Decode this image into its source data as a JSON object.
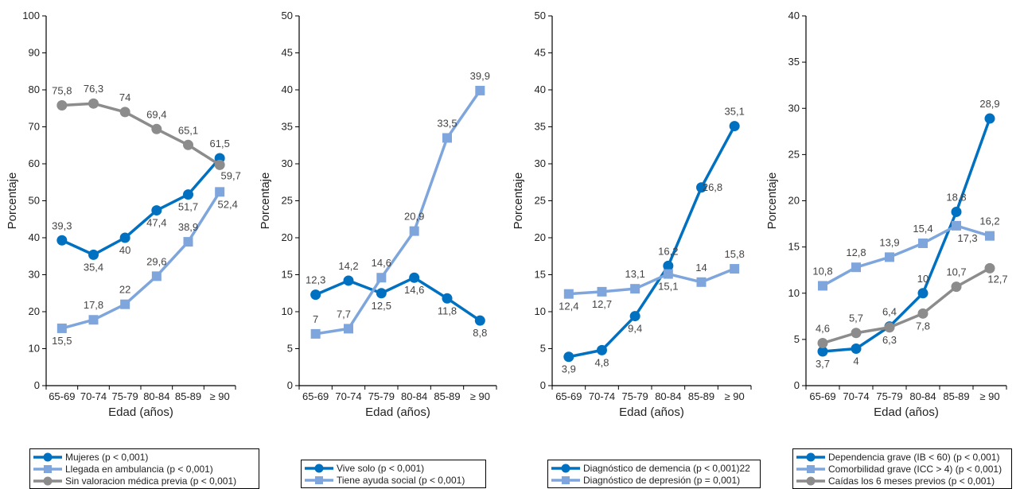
{
  "colors": {
    "dark_blue": "#0070c0",
    "light_blue": "#7ea6dc",
    "gray": "#8c8c8c"
  },
  "chart_data": [
    {
      "type": "line",
      "categories": [
        "65-69",
        "70-74",
        "75-79",
        "80-84",
        "85-89",
        "≥ 90"
      ],
      "xlabel": "Edad (años)",
      "ylabel": "Porcentaje",
      "ylim": [
        0,
        100
      ],
      "yticks": [
        0,
        10,
        20,
        30,
        40,
        50,
        60,
        70,
        80,
        90,
        100
      ],
      "grid": false,
      "legend_position": "bottom",
      "series": [
        {
          "name": "Mujeres (p < 0,001)",
          "color": "#0070c0",
          "marker": "circle",
          "values": [
            39.3,
            35.4,
            40,
            47.4,
            51.7,
            61.5
          ],
          "labels": [
            "39,3",
            "35,4",
            "40",
            "47,4",
            "51,7",
            "61,5"
          ]
        },
        {
          "name": "Llegada en ambulancia (p < 0,001)",
          "color": "#7ea6dc",
          "marker": "square",
          "values": [
            15.5,
            17.8,
            22,
            29.6,
            38.9,
            52.4
          ],
          "labels": [
            "15,5",
            "17,8",
            "22",
            "29,6",
            "38,9",
            "52,4"
          ]
        },
        {
          "name": "Sin valoracion médica previa (p < 0,001)",
          "color": "#8c8c8c",
          "marker": "circle",
          "values": [
            75.8,
            76.3,
            74,
            69.4,
            65.1,
            59.7
          ],
          "labels": [
            "75,8",
            "76,3",
            "74",
            "69,4",
            "65,1",
            "59,7"
          ]
        }
      ]
    },
    {
      "type": "line",
      "categories": [
        "65-69",
        "70-74",
        "75-79",
        "80-84",
        "85-89",
        "≥ 90"
      ],
      "xlabel": "Edad (años)",
      "ylabel": "Porcentaje",
      "ylim": [
        0,
        50
      ],
      "yticks": [
        0,
        5,
        10,
        15,
        20,
        25,
        30,
        35,
        40,
        45,
        50
      ],
      "grid": false,
      "legend_position": "bottom",
      "series": [
        {
          "name": "Vive solo (p < 0,001)",
          "color": "#0070c0",
          "marker": "circle",
          "values": [
            12.3,
            14.2,
            12.5,
            14.6,
            11.8,
            8.8
          ],
          "labels": [
            "12,3",
            "14,2",
            "12,5",
            "14,6",
            "11,8",
            "8,8"
          ]
        },
        {
          "name": "Tiene ayuda social (p < 0,001)",
          "color": "#7ea6dc",
          "marker": "square",
          "values": [
            7,
            7.7,
            14.6,
            20.9,
            33.5,
            39.9
          ],
          "labels": [
            "7",
            "7,7",
            "14,6",
            "20,9",
            "33,5",
            "39,9"
          ]
        }
      ]
    },
    {
      "type": "line",
      "categories": [
        "65-69",
        "70-74",
        "75-79",
        "80-84",
        "85-89",
        "≥ 90"
      ],
      "xlabel": "Edad (años)",
      "ylabel": "Porcentaje",
      "ylim": [
        0,
        50
      ],
      "yticks": [
        0,
        5,
        10,
        15,
        20,
        25,
        30,
        35,
        40,
        45,
        50
      ],
      "grid": false,
      "legend_position": "bottom",
      "series": [
        {
          "name": "Diagnóstico de demencia (p < 0,001)22",
          "color": "#0070c0",
          "marker": "circle",
          "values": [
            3.9,
            4.8,
            9.4,
            16.2,
            26.8,
            35.1
          ],
          "labels": [
            "3,9",
            "4,8",
            "9,4",
            "16,2",
            "26,8",
            "35,1"
          ]
        },
        {
          "name": "Diagnóstico de depresión (p = 0,001)",
          "color": "#7ea6dc",
          "marker": "square",
          "values": [
            12.4,
            12.7,
            13.1,
            15.1,
            14,
            15.8
          ],
          "labels": [
            "12,4",
            "12,7",
            "13,1",
            "15,1",
            "14",
            "15,8"
          ]
        }
      ]
    },
    {
      "type": "line",
      "categories": [
        "65-69",
        "70-74",
        "75-79",
        "80-84",
        "85-89",
        "≥ 90"
      ],
      "xlabel": "Edad (años)",
      "ylabel": "Porcentaje",
      "ylim": [
        0,
        40
      ],
      "yticks": [
        0,
        5,
        10,
        15,
        20,
        25,
        30,
        35,
        40
      ],
      "grid": false,
      "legend_position": "bottom",
      "series": [
        {
          "name": "Dependencia grave (IB < 60) (p < 0,001)",
          "color": "#0070c0",
          "marker": "circle",
          "values": [
            3.7,
            4,
            6.4,
            10,
            18.8,
            28.9
          ],
          "labels": [
            "3,7",
            "4",
            "6,4",
            "10",
            "18,8",
            "28,9"
          ]
        },
        {
          "name": "Comorbilidad grave (ICC > 4) (p < 0,001)",
          "color": "#7ea6dc",
          "marker": "square",
          "values": [
            10.8,
            12.8,
            13.9,
            15.4,
            17.3,
            16.2
          ],
          "labels": [
            "10,8",
            "12,8",
            "13,9",
            "15,4",
            "17,3",
            "16,2"
          ]
        },
        {
          "name": "Caídas los 6 meses previos (p < 0,001)",
          "color": "#8c8c8c",
          "marker": "circle",
          "values": [
            4.6,
            5.7,
            6.3,
            7.8,
            10.7,
            12.7
          ],
          "labels": [
            "4,6",
            "5,7",
            "6,3",
            "7,8",
            "10,7",
            "12,7"
          ]
        }
      ]
    }
  ]
}
